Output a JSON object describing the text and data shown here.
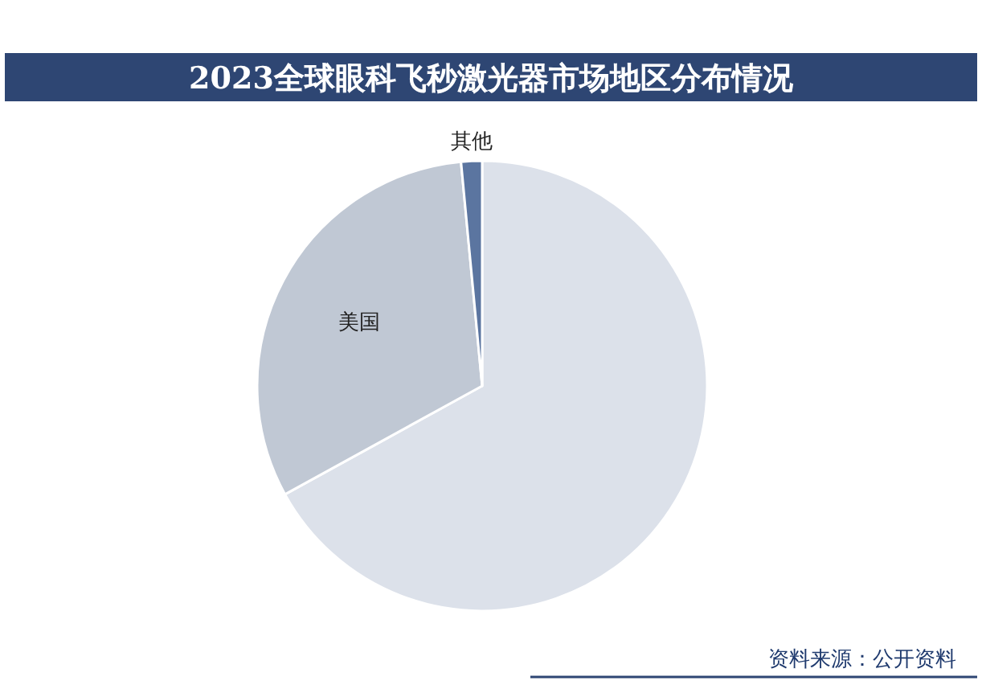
{
  "chart_data": {
    "type": "pie",
    "title": "2023全球眼科飞秒激光器市场地区分布情况",
    "categories": [
      null,
      "美国",
      "其他"
    ],
    "values": [
      67,
      31.5,
      1.5
    ],
    "colors": [
      "#dce1ea",
      "#c0c8d4",
      "#5b75a0"
    ],
    "annotations": [
      "资料来源：公开资料"
    ]
  }
}
